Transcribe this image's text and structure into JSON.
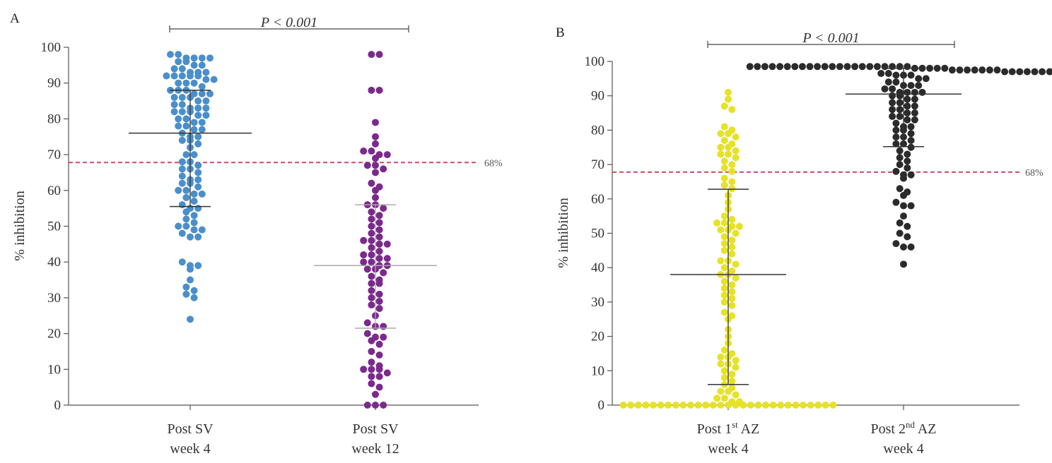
{
  "colors": {
    "threshold": "#cc4a6a",
    "axis": "#555555",
    "errorbar": "#333333",
    "errorbar_overlay": "#aaaaaa"
  },
  "chart_data": [
    {
      "type": "scatter",
      "panel": "A",
      "ylabel": "% inhibition",
      "ylim": [
        0,
        100
      ],
      "yticks": [
        0,
        10,
        20,
        30,
        40,
        50,
        60,
        70,
        80,
        90,
        100
      ],
      "threshold": {
        "value": 67.8,
        "label": "68%"
      },
      "comparison": {
        "text": "P < 0.001",
        "from": 0,
        "to": 1
      },
      "series": [
        {
          "label_line1": "Post SV",
          "label_line2": "week 4",
          "color": "#4a8fcb",
          "stats": {
            "center": 76,
            "lower": 55.5,
            "upper": 88
          },
          "values": [
            98,
            98,
            97,
            97,
            97,
            97,
            96,
            96,
            95,
            95,
            94,
            94,
            93,
            93,
            93,
            92,
            92,
            92,
            92,
            92,
            91,
            91,
            90,
            90,
            90,
            89,
            88,
            88,
            88,
            87,
            87,
            87,
            86,
            86,
            86,
            85,
            85,
            84,
            84,
            83,
            83,
            83,
            82,
            82,
            82,
            81,
            81,
            80,
            80,
            79,
            79,
            78,
            78,
            77,
            77,
            76,
            75,
            75,
            74,
            74,
            73,
            72,
            70,
            70,
            68,
            68,
            67,
            66,
            66,
            65,
            64,
            63,
            63,
            62,
            62,
            61,
            60,
            60,
            59,
            59,
            58,
            57,
            56,
            55,
            55,
            54,
            53,
            52,
            51,
            50,
            50,
            49,
            49,
            48,
            47,
            47,
            40,
            39,
            39,
            38,
            35,
            33,
            32,
            31,
            30,
            24
          ]
        },
        {
          "label_line1": "Post SV",
          "label_line2": "week 12",
          "color": "#7b2a8c",
          "stats": {
            "center": 39,
            "lower": 21.5,
            "upper": 56
          },
          "values": [
            98,
            98,
            88,
            88,
            79,
            75,
            73,
            71,
            71,
            70,
            70,
            69,
            67,
            67,
            66,
            65,
            62,
            61,
            60,
            58,
            56,
            56,
            55,
            54,
            53,
            52,
            51,
            50,
            49,
            48,
            47,
            46,
            46,
            45,
            45,
            44,
            43,
            42,
            42,
            41,
            41,
            40,
            40,
            39,
            39,
            38,
            38,
            37,
            36,
            35,
            34,
            34,
            32,
            31,
            30,
            29,
            28,
            27,
            25,
            23,
            22,
            22,
            20,
            19,
            19,
            18,
            17,
            15,
            14,
            12,
            11,
            10,
            10,
            10,
            9,
            8,
            8,
            6,
            5,
            3,
            0,
            0,
            0
          ]
        }
      ]
    },
    {
      "type": "scatter",
      "panel": "B",
      "ylabel": "% inhibition",
      "ylim": [
        0,
        100
      ],
      "yticks": [
        0,
        10,
        20,
        30,
        40,
        50,
        60,
        70,
        80,
        90,
        100
      ],
      "threshold": {
        "value": 67.8,
        "label": "68%"
      },
      "comparison": {
        "text": "P < 0.001",
        "from": 0,
        "to": 1
      },
      "series": [
        {
          "label_line1": "Post 1",
          "label_sup": "st",
          "label_after": " AZ",
          "label_line2": "week 4",
          "color": "#e6e227",
          "stats": {
            "center": 38,
            "lower": 6,
            "upper": 62.8
          },
          "values": [
            91,
            89,
            87,
            86,
            81,
            80,
            79,
            79,
            78,
            77,
            76,
            75,
            75,
            74,
            73,
            73,
            72,
            71,
            70,
            69,
            68,
            66,
            65,
            64,
            63,
            61,
            59,
            57,
            55,
            54,
            53,
            53,
            52,
            52,
            51,
            51,
            50,
            49,
            48,
            47,
            46,
            45,
            44,
            42,
            42,
            41,
            40,
            39,
            38,
            38,
            37,
            36,
            35,
            34,
            33,
            32,
            31,
            30,
            29,
            27,
            26,
            25,
            22,
            20,
            18,
            16,
            15,
            14,
            14,
            13,
            12,
            12,
            11,
            10,
            9,
            8,
            7,
            6,
            5,
            4,
            4,
            3,
            2,
            2,
            1,
            1,
            0,
            0,
            0,
            0,
            0,
            0,
            0,
            0,
            0,
            0,
            0,
            0,
            0,
            0,
            0,
            0,
            0,
            0,
            0,
            0,
            0,
            0,
            0,
            0,
            0,
            0,
            0,
            0,
            0
          ]
        },
        {
          "label_line1": "Post 2",
          "label_sup": "nd",
          "label_after": " AZ",
          "label_line2": "week 4",
          "color": "#2b2b2b",
          "stats": {
            "center": 90.5,
            "lower": 75.2,
            "upper": 98
          },
          "values": [
            98.5,
            98.5,
            98.5,
            98.5,
            98.5,
            98.5,
            98.5,
            98.5,
            98.5,
            98.5,
            98.5,
            98.5,
            98.5,
            98.5,
            98.5,
            98.5,
            98.5,
            98.5,
            98.5,
            98.5,
            98.5,
            98.5,
            98,
            98,
            98,
            98,
            98,
            97.5,
            97.5,
            97.5,
            97.5,
            97.5,
            97.5,
            97.5,
            97,
            97,
            97,
            97,
            97,
            97,
            97,
            97,
            96.5,
            96.5,
            96,
            96,
            96,
            95,
            95,
            94,
            94,
            93,
            93,
            93,
            92,
            92,
            91,
            91,
            91,
            91,
            90,
            90,
            89,
            89,
            88,
            88,
            87,
            87,
            86,
            86,
            85,
            85,
            84,
            84,
            83,
            83,
            82,
            81,
            81,
            80,
            80,
            79,
            78,
            78,
            77,
            76,
            76,
            75,
            74,
            73,
            72,
            71,
            70,
            69,
            68,
            67,
            67,
            66,
            63,
            62,
            61,
            59,
            58,
            58,
            55,
            53,
            52,
            50,
            49,
            47,
            46,
            46,
            41
          ]
        }
      ]
    }
  ]
}
